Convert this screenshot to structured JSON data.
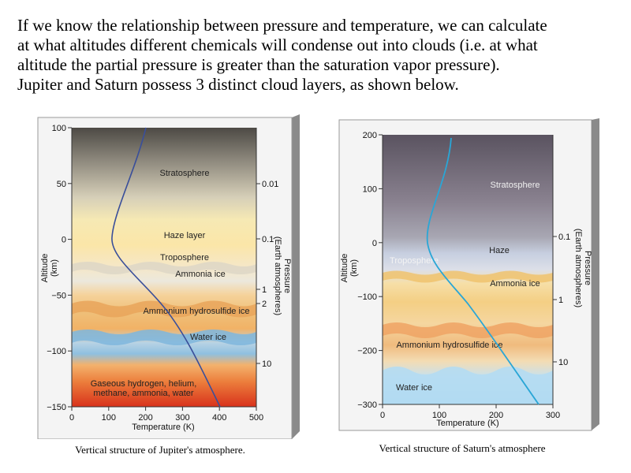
{
  "intro": {
    "lines": [
      "If we know the relationship between pressure and temperature, we can calculate",
      "at what altitudes different chemicals will condense out into clouds (i.e. at what",
      "altitude the partial pressure is greater than the saturation vapor pressure).",
      "Jupiter and Saturn possess 3 distinct cloud layers, as shown below."
    ]
  },
  "jupiter": {
    "caption": "Vertical structure of Jupiter's atmosphere.",
    "y_axis_label_1": "Altitude",
    "y_axis_label_2": "(km)",
    "x_axis_label": "Temperature (K)",
    "pressure_label_1": "Pressure",
    "pressure_label_2": "(Earth atmospheres)",
    "y_ticks": [
      "100",
      "50",
      "0",
      "−50",
      "−100",
      "−150"
    ],
    "x_ticks": [
      "0",
      "100",
      "200",
      "300",
      "400",
      "500"
    ],
    "pressure_ticks": [
      "0.01",
      "0.1",
      "1",
      "2",
      "10"
    ],
    "layers": {
      "stratosphere": "Stratosphere",
      "haze": "Haze layer",
      "troposphere": "Troposphere",
      "ammonia": "Ammonia ice",
      "ammonium": "Ammonium hydrosulfide ice",
      "water": "Water ice",
      "gas_1": "Gaseous hydrogen, helium,",
      "gas_2": "methane, ammonia, water"
    },
    "curve_color": "#3a4f9a"
  },
  "saturn": {
    "caption": "Vertical structure of Saturn's atmosphere",
    "y_axis_label_1": "Altitude",
    "y_axis_label_2": "(km)",
    "x_axis_label": "Temperature (K)",
    "pressure_label_1": "Pressure",
    "pressure_label_2": "(Earth atmospheres)",
    "y_ticks": [
      "200",
      "100",
      "0",
      "−100",
      "−200",
      "−300"
    ],
    "x_ticks": [
      "0",
      "100",
      "200",
      "300"
    ],
    "pressure_ticks": [
      "0.1",
      "1",
      "10"
    ],
    "layers": {
      "stratosphere": "Stratosphere",
      "troposphere": "Troposphere",
      "haze": "Haze",
      "ammonia": "Ammonia ice",
      "ammonium": "Ammonium hydrosulfide ice",
      "water": "Water ice"
    },
    "curve_color": "#2aa6d6"
  }
}
